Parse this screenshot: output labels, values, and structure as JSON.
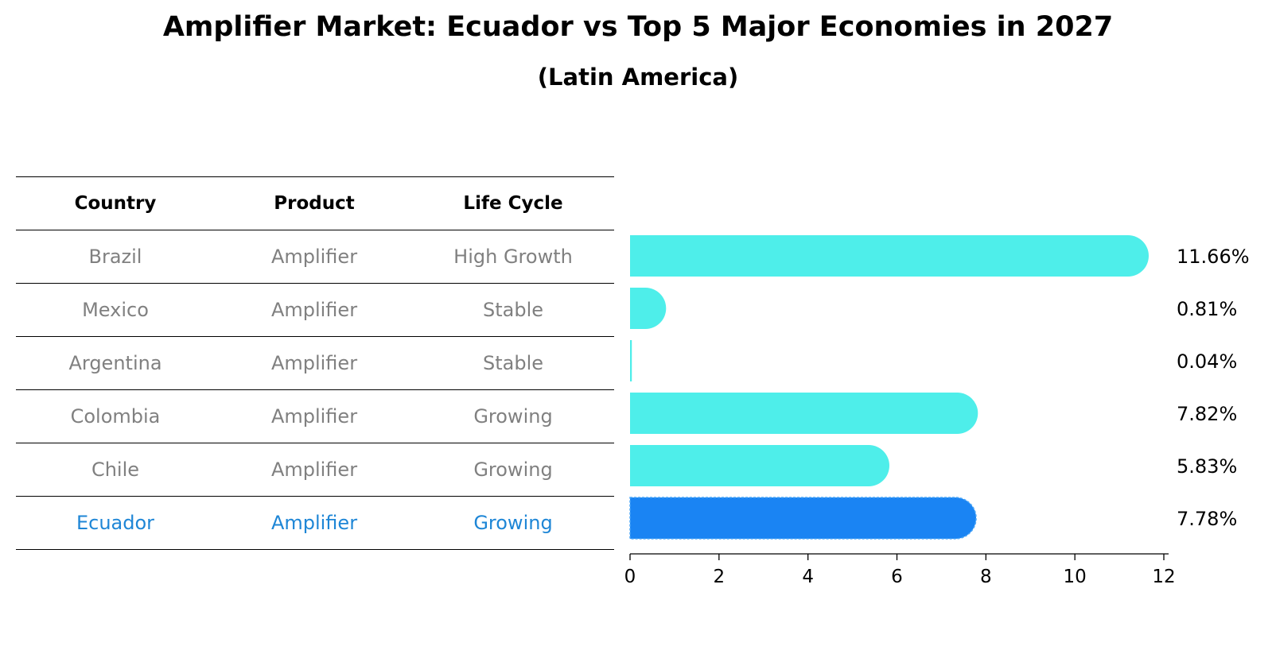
{
  "title": "Amplifier Market: Ecuador vs Top 5 Major Economies in 2027",
  "subtitle": "(Latin America)",
  "table": {
    "headers": [
      "Country",
      "Product",
      "Life Cycle"
    ],
    "rows": [
      [
        "Brazil",
        "Amplifier",
        "High Growth"
      ],
      [
        "Mexico",
        "Amplifier",
        "Stable"
      ],
      [
        "Argentina",
        "Amplifier",
        "Stable"
      ],
      [
        "Colombia",
        "Amplifier",
        "Growing"
      ],
      [
        "Chile",
        "Amplifier",
        "Growing"
      ],
      [
        "Ecuador",
        "Amplifier",
        "Growing"
      ]
    ],
    "highlight_row": 5,
    "text_color": "#808080",
    "highlight_color": "#1e86d6"
  },
  "chart_data": {
    "type": "bar",
    "orientation": "horizontal",
    "categories": [
      "Brazil",
      "Mexico",
      "Argentina",
      "Colombia",
      "Chile",
      "Ecuador"
    ],
    "values": [
      11.66,
      0.81,
      0.04,
      7.82,
      5.83,
      7.78
    ],
    "labels": [
      "11.66%",
      "0.81%",
      "0.04%",
      "7.82%",
      "5.83%",
      "7.78%"
    ],
    "xlim": [
      0,
      12
    ],
    "xticks": [
      0,
      2,
      4,
      6,
      8,
      10,
      12
    ],
    "grid": false,
    "colors": {
      "default": "#4eeeea",
      "highlight": "#1a84f3"
    },
    "highlight_index": 5
  }
}
